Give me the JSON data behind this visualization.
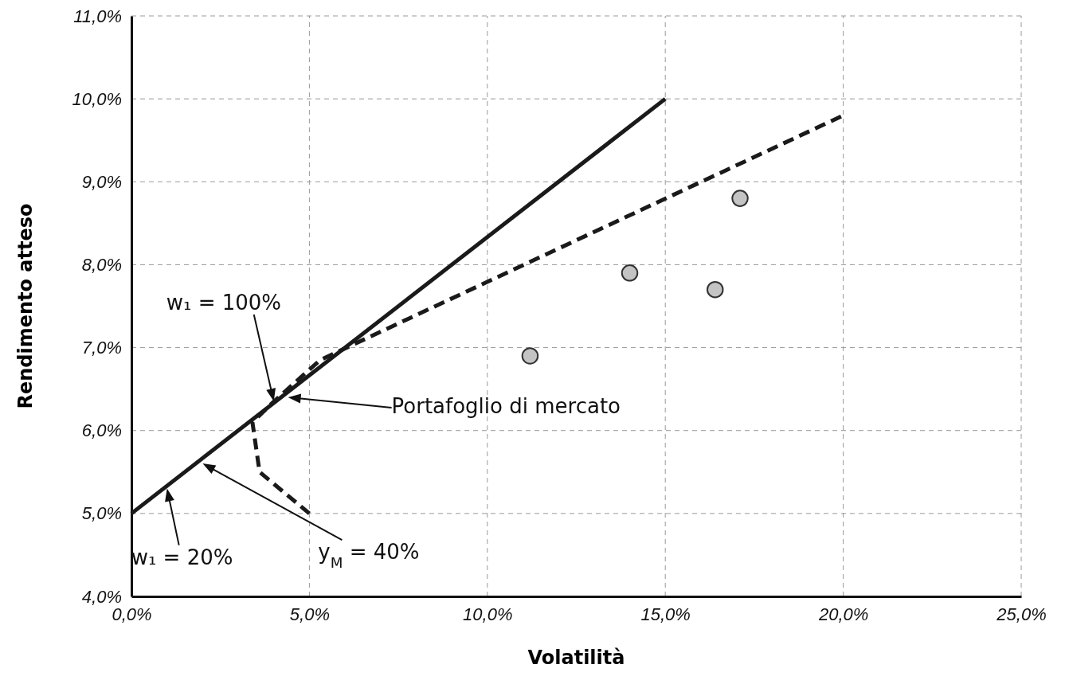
{
  "chart_data": {
    "type": "line",
    "xlabel": "Volatilità",
    "ylabel": "Rendimento atteso",
    "xlim": [
      0,
      25
    ],
    "ylim": [
      4,
      11
    ],
    "xticks": [
      {
        "value": 0,
        "label": "0,0%"
      },
      {
        "value": 5,
        "label": "5,0%"
      },
      {
        "value": 10,
        "label": "10,0%"
      },
      {
        "value": 15,
        "label": "15,0%"
      },
      {
        "value": 20,
        "label": "20,0%"
      },
      {
        "value": 25,
        "label": "25,0%"
      }
    ],
    "yticks": [
      {
        "value": 4,
        "label": "4,0%"
      },
      {
        "value": 5,
        "label": "5,0%"
      },
      {
        "value": 6,
        "label": "6,0%"
      },
      {
        "value": 7,
        "label": "7,0%"
      },
      {
        "value": 8,
        "label": "8,0%"
      },
      {
        "value": 9,
        "label": "9,0%"
      },
      {
        "value": 10,
        "label": "10,0%"
      },
      {
        "value": 11,
        "label": "11,0%"
      }
    ],
    "grid": true,
    "series": [
      {
        "type": "line",
        "color": "#1a1a1a",
        "line_style": "solid",
        "marker": "none",
        "x": [
          0,
          15
        ],
        "values": [
          5.0,
          10.0
        ]
      },
      {
        "type": "line",
        "color": "#1a1a1a",
        "line_style": "dashed",
        "marker": "none",
        "x": [
          5.0,
          3.6,
          3.4,
          4.0,
          5.3,
          20
        ],
        "values": [
          5.0,
          5.5,
          6.1,
          6.35,
          6.85,
          9.8
        ]
      },
      {
        "type": "scatter",
        "color": "#c4c4c4",
        "marker": "circle",
        "x": [
          11.2,
          14.0,
          16.4,
          17.1
        ],
        "values": [
          6.9,
          7.9,
          7.7,
          8.8
        ]
      }
    ],
    "annotations": [
      "w₁ = 100%",
      "Portafoglio di mercato",
      {
        "text": "w₁ = 20%",
        "x": 1.0,
        "y": 5.3
      },
      "y$_{M}$ = 40%"
    ]
  }
}
